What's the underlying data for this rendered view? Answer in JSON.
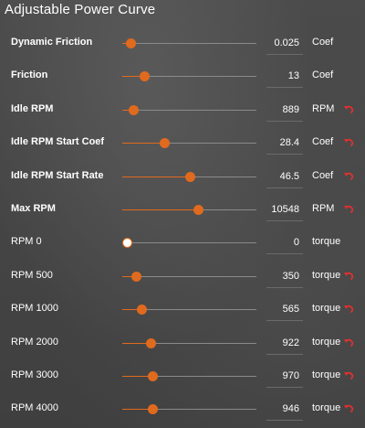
{
  "panel": {
    "title": "Adjustable Power Curve",
    "accent_color": "#e06a1e",
    "reset_icon": "undo-arrow-icon"
  },
  "rows": [
    {
      "label": "Dynamic Friction",
      "value": "0.025",
      "unit": "Coef",
      "level": 0.03,
      "resettable": false,
      "bold": true
    },
    {
      "label": "Friction",
      "value": "13",
      "unit": "Coef",
      "level": 0.13,
      "resettable": false,
      "bold": true
    },
    {
      "label": "Idle RPM",
      "value": "889",
      "unit": "RPM",
      "level": 0.05,
      "resettable": true,
      "bold": true
    },
    {
      "label": "Idle RPM Start Coef",
      "value": "28.4",
      "unit": "Coef",
      "level": 0.28,
      "resettable": true,
      "bold": true
    },
    {
      "label": "Idle RPM Start Rate",
      "value": "46.5",
      "unit": "Coef",
      "level": 0.47,
      "resettable": true,
      "bold": true
    },
    {
      "label": "Max RPM",
      "value": "10548",
      "unit": "RPM",
      "level": 0.53,
      "resettable": true,
      "bold": true
    },
    {
      "label": "RPM 0",
      "value": "0",
      "unit": "torque",
      "level": 0.0,
      "resettable": false,
      "bold": false
    },
    {
      "label": "RPM 500",
      "value": "350",
      "unit": "torque",
      "level": 0.07,
      "resettable": true,
      "bold": false
    },
    {
      "label": "RPM 1000",
      "value": "565",
      "unit": "torque",
      "level": 0.11,
      "resettable": true,
      "bold": false
    },
    {
      "label": "RPM 2000",
      "value": "922",
      "unit": "torque",
      "level": 0.18,
      "resettable": true,
      "bold": false
    },
    {
      "label": "RPM 3000",
      "value": "970",
      "unit": "torque",
      "level": 0.19,
      "resettable": true,
      "bold": false
    },
    {
      "label": "RPM 4000",
      "value": "946",
      "unit": "torque",
      "level": 0.19,
      "resettable": true,
      "bold": false
    }
  ]
}
